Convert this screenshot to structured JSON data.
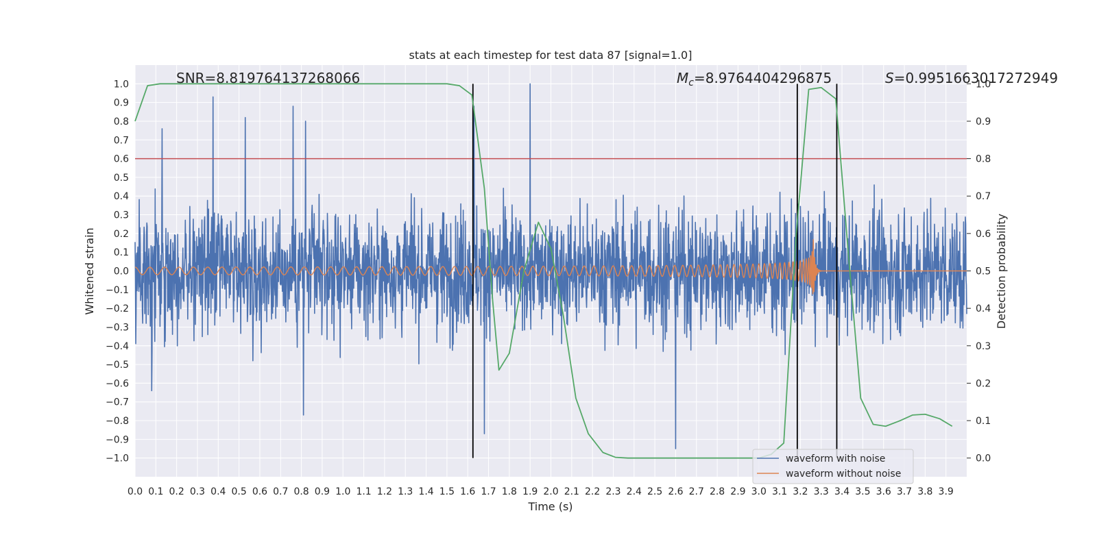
{
  "chart_data": {
    "type": "line",
    "title": "stats at each timestep for test data 87 [signal=1.0]",
    "xlabel": "Time (s)",
    "ylabel": "Whitened strain",
    "y2label": "Detection probability",
    "xlim": [
      0.0,
      4.0
    ],
    "ylim": [
      -1.1,
      1.1
    ],
    "y2lim": [
      -0.05,
      1.05
    ],
    "grid": true,
    "legend_position": "bottom-right",
    "x_ticks": [
      "0.0",
      "0.1",
      "0.2",
      "0.3",
      "0.4",
      "0.5",
      "0.6",
      "0.7",
      "0.8",
      "0.9",
      "1.0",
      "1.1",
      "1.2",
      "1.3",
      "1.4",
      "1.5",
      "1.6",
      "1.7",
      "1.8",
      "1.9",
      "2.0",
      "2.1",
      "2.2",
      "2.3",
      "2.4",
      "2.5",
      "2.6",
      "2.7",
      "2.8",
      "2.9",
      "3.0",
      "3.1",
      "3.2",
      "3.3",
      "3.4",
      "3.5",
      "3.6",
      "3.7",
      "3.8",
      "3.9"
    ],
    "y_ticks": [
      "1.0",
      "0.9",
      "0.8",
      "0.7",
      "0.6",
      "0.5",
      "0.4",
      "0.3",
      "0.2",
      "0.1",
      "0.0",
      "−0.1",
      "−0.2",
      "−0.3",
      "−0.4",
      "−0.5",
      "−0.6",
      "−0.7",
      "−0.8",
      "−0.9",
      "−1.0"
    ],
    "y2_ticks": [
      "1.0",
      "0.9",
      "0.8",
      "0.7",
      "0.6",
      "0.5",
      "0.4",
      "0.3",
      "0.2",
      "0.1",
      "0.0"
    ],
    "annotations": {
      "snr": "SNR=8.819764137268066",
      "mc_symbol": "M",
      "mc_sub": "c",
      "mc_value": "=8.9764404296875",
      "s_symbol": "S",
      "s_value": "=0.9951663017272949"
    },
    "threshold": {
      "y": 0.8,
      "color": "#c44e52"
    },
    "vertical_markers": [
      1.625,
      3.185,
      3.375
    ],
    "series": [
      {
        "name": "waveform with noise",
        "color": "#4c72b0",
        "kind": "noise",
        "amplitude_typical": 0.45,
        "peaks": [
          [
            0.375,
            0.93
          ],
          [
            0.76,
            0.88
          ],
          [
            1.9,
            1.0
          ],
          [
            0.13,
            0.76
          ],
          [
            0.53,
            0.82
          ],
          [
            0.82,
            0.8
          ],
          [
            2.6,
            -0.95
          ],
          [
            0.81,
            -0.77
          ],
          [
            1.68,
            -0.87
          ],
          [
            0.08,
            -0.64
          ],
          [
            1.63,
            0.88
          ]
        ]
      },
      {
        "name": "waveform without noise",
        "color": "#dd8452",
        "kind": "chirp",
        "t_merger": 3.26,
        "amplitude_start": 0.02,
        "amplitude_peak": 0.22
      },
      {
        "name": "detection probability",
        "color": "#55a868",
        "axis": "y2",
        "x": [
          0.0,
          0.06,
          0.12,
          0.2,
          0.4,
          0.8,
          1.2,
          1.5,
          1.56,
          1.62,
          1.68,
          1.72,
          1.75,
          1.8,
          1.87,
          1.94,
          2.0,
          2.06,
          2.12,
          2.18,
          2.25,
          2.31,
          2.37,
          2.5,
          2.8,
          3.0,
          3.06,
          3.12,
          3.18,
          3.24,
          3.3,
          3.37,
          3.43,
          3.49,
          3.55,
          3.61,
          3.68,
          3.74,
          3.8,
          3.87,
          3.93
        ],
        "y": [
          0.9,
          0.995,
          1.0,
          1.0,
          1.0,
          1.0,
          1.0,
          1.0,
          0.995,
          0.97,
          0.72,
          0.42,
          0.235,
          0.28,
          0.5,
          0.63,
          0.56,
          0.38,
          0.16,
          0.065,
          0.015,
          0.002,
          0.0,
          0.0,
          0.0,
          0.0,
          0.01,
          0.04,
          0.6,
          0.985,
          0.99,
          0.96,
          0.55,
          0.16,
          0.09,
          0.085,
          0.1,
          0.115,
          0.117,
          0.105,
          0.085
        ]
      }
    ]
  }
}
